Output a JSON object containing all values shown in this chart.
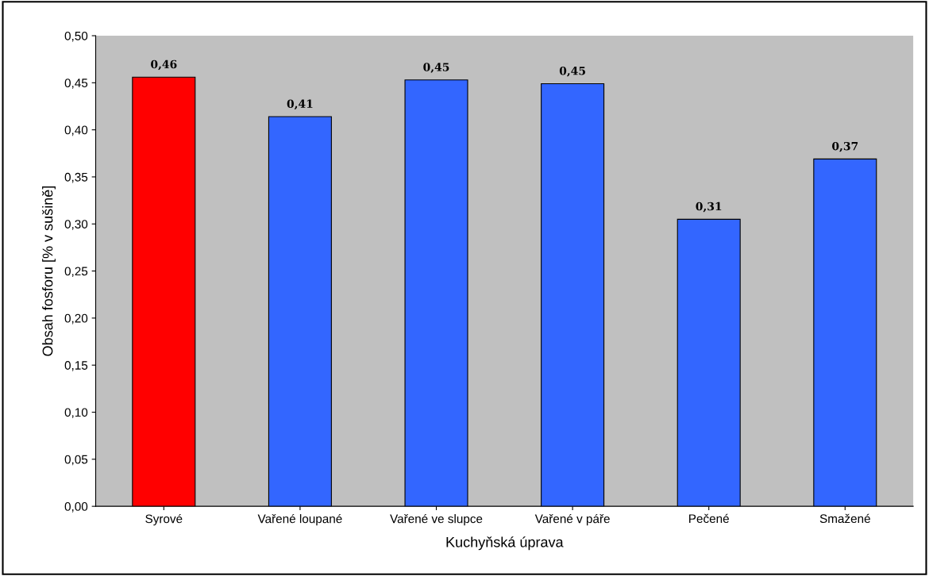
{
  "chart_data": {
    "type": "bar",
    "xlabel": "Kuchyňská úprava",
    "ylabel": "Obsah fosforu [% v sušině]",
    "categories": [
      "Syrové",
      "Vařené loupané",
      "Vařené ve slupce",
      "Vařené v páře",
      "Pečené",
      "Smažené"
    ],
    "values": [
      0.456,
      0.414,
      0.453,
      0.449,
      0.305,
      0.369
    ],
    "value_labels": [
      "0,46",
      "0,41",
      "0,45",
      "0,45",
      "0,31",
      "0,37"
    ],
    "colors": [
      "#ff0000",
      "#3366ff",
      "#3366ff",
      "#3366ff",
      "#3366ff",
      "#3366ff"
    ],
    "ylim": [
      0,
      0.5
    ],
    "yticks": [
      {
        "value": 0,
        "label": "0,00"
      },
      {
        "value": 0.05,
        "label": "0,05"
      },
      {
        "value": 0.1,
        "label": "0,10"
      },
      {
        "value": 0.15,
        "label": "0,15"
      },
      {
        "value": 0.2,
        "label": "0,20"
      },
      {
        "value": 0.25,
        "label": "0,25"
      },
      {
        "value": 0.3,
        "label": "0,30"
      },
      {
        "value": 0.35,
        "label": "0,35"
      },
      {
        "value": 0.4,
        "label": "0,40"
      },
      {
        "value": 0.45,
        "label": "0,45"
      },
      {
        "value": 0.5,
        "label": "0,50"
      }
    ],
    "grid": false,
    "legend": false
  }
}
